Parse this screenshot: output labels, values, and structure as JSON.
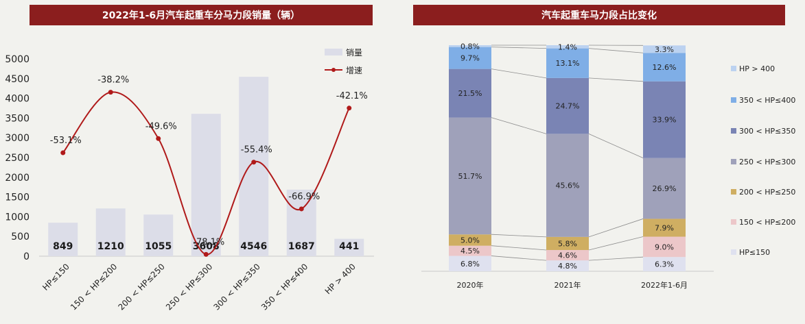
{
  "left_chart": {
    "title": "2022年1-6月汽车起重车分马力段销量（辆）",
    "legend": {
      "bar": "销量",
      "line": "增速"
    },
    "chart_data": {
      "type": "bar+line",
      "categories": [
        "HP≤150",
        "150 < HP≤200",
        "200 < HP≤250",
        "250 < HP≤300",
        "300 < HP≤350",
        "350 < HP≤400",
        "HP > 400"
      ],
      "series": [
        {
          "name": "销量",
          "type": "bar",
          "values": [
            849,
            1210,
            1055,
            3608,
            4546,
            1687,
            441
          ],
          "labels": [
            "849",
            "1210",
            "1055",
            "3608",
            "4546",
            "1687",
            "441"
          ],
          "color": "#dcdde8"
        },
        {
          "name": "增速",
          "type": "line",
          "values": [
            -53.1,
            -38.2,
            -49.6,
            -78.1,
            -55.4,
            -66.9,
            -42.1
          ],
          "labels": [
            "-53.1%",
            "-38.2%",
            "-49.6%",
            "-78.1%",
            "-55.4%",
            "-66.9%",
            "-42.1%"
          ],
          "color": "#b01a1a"
        }
      ],
      "y_ticks": [
        "0",
        "500",
        "1000",
        "1500",
        "2000",
        "2500",
        "3000",
        "3500",
        "4000",
        "4500",
        "5000"
      ],
      "ylim": [
        0,
        5000
      ],
      "line_ylim": [
        -90,
        -30
      ]
    }
  },
  "right_chart": {
    "title": "汽车起重车马力段占比变化",
    "chart_data": {
      "type": "stacked-bar-100",
      "categories": [
        "2020年",
        "2021年",
        "2022年1-6月"
      ],
      "series": [
        {
          "name": "HP≤150",
          "values": [
            6.8,
            4.8,
            6.3
          ],
          "labels": [
            "6.8%",
            "4.8%",
            "6.3%"
          ],
          "color": "#dfe1ef"
        },
        {
          "name": "150 < HP≤200",
          "values": [
            4.5,
            4.6,
            9.0
          ],
          "labels": [
            "4.5%",
            "4.6%",
            "9.0%"
          ],
          "color": "#ecc7c9"
        },
        {
          "name": "200 < HP≤250",
          "values": [
            5.0,
            5.8,
            7.9
          ],
          "labels": [
            "5.0%",
            "5.8%",
            "7.9%"
          ],
          "color": "#cfae62"
        },
        {
          "name": "250 < HP≤300",
          "values": [
            51.7,
            45.6,
            26.9
          ],
          "labels": [
            "51.7%",
            "45.6%",
            "26.9%"
          ],
          "color": "#9fa1ba"
        },
        {
          "name": "300 < HP≤350",
          "values": [
            21.5,
            24.7,
            33.9
          ],
          "labels": [
            "21.5%",
            "24.7%",
            "33.9%"
          ],
          "color": "#7a84b4"
        },
        {
          "name": "350 < HP≤400",
          "values": [
            9.7,
            13.1,
            12.6
          ],
          "labels": [
            "9.7%",
            "13.1%",
            "12.6%"
          ],
          "color": "#7faee6"
        },
        {
          "name": "HP > 400",
          "values": [
            0.8,
            1.4,
            3.3
          ],
          "labels": [
            "0.8%",
            "1.4%",
            "3.3%"
          ],
          "color": "#bcd2f0"
        }
      ],
      "legend_position": "right"
    }
  }
}
